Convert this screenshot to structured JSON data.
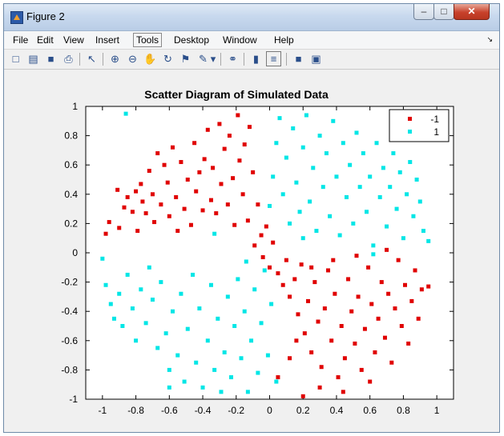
{
  "window": {
    "title": "Figure 2",
    "minimize_glyph": "–",
    "maximize_glyph": "□",
    "close_glyph": "✕"
  },
  "menubar": {
    "items": [
      "File",
      "Edit",
      "View",
      "Insert",
      "Tools",
      "Desktop",
      "Window",
      "Help"
    ],
    "active": "Tools",
    "overflow_glyph": "↘"
  },
  "toolbar": {
    "buttons": [
      {
        "name": "new-figure-icon",
        "glyph": "□"
      },
      {
        "name": "open-file-icon",
        "glyph": "▤"
      },
      {
        "name": "save-icon",
        "glyph": "■"
      },
      {
        "name": "print-icon",
        "glyph": "⎙"
      },
      {
        "name": "edit-plot-arrow-icon",
        "glyph": "↖"
      },
      {
        "name": "zoom-in-icon",
        "glyph": "⊕"
      },
      {
        "name": "zoom-out-icon",
        "glyph": "⊖"
      },
      {
        "name": "pan-hand-icon",
        "glyph": "✋"
      },
      {
        "name": "rotate-3d-icon",
        "glyph": "↻"
      },
      {
        "name": "data-cursor-icon",
        "glyph": "⚑"
      },
      {
        "name": "brush-icon",
        "glyph": "✎"
      },
      {
        "name": "brush-dropdown-icon",
        "glyph": "▾"
      },
      {
        "name": "link-plot-icon",
        "glyph": "⚭"
      },
      {
        "name": "insert-colorbar-icon",
        "glyph": "▮"
      },
      {
        "name": "insert-legend-icon",
        "glyph": "≡"
      },
      {
        "name": "hide-plot-tools-icon",
        "glyph": "■"
      },
      {
        "name": "show-plot-tools-icon",
        "glyph": "▣"
      }
    ]
  },
  "colors": {
    "class_neg": "#e00000",
    "class_pos": "#00e6e6",
    "axes_bg": "#ffffff",
    "figure_bg": "#f0f0f0"
  },
  "chart_data": {
    "type": "scatter",
    "title": "Scatter Diagram of Simulated Data",
    "xlabel": "",
    "ylabel": "",
    "xlim": [
      -1.1,
      1.1
    ],
    "ylim": [
      -1,
      1
    ],
    "xticks": [
      -1,
      -0.8,
      -0.6,
      -0.4,
      -0.2,
      0,
      0.2,
      0.4,
      0.6,
      0.8,
      1
    ],
    "yticks": [
      -1,
      -0.8,
      -0.6,
      -0.4,
      -0.2,
      0,
      0.2,
      0.4,
      0.6,
      0.8,
      1
    ],
    "legend_position": "top-right",
    "series": [
      {
        "name": "-1",
        "color": "#e00000",
        "points": [
          [
            -0.98,
            0.13
          ],
          [
            -0.96,
            0.21
          ],
          [
            -0.91,
            0.43
          ],
          [
            -0.9,
            0.17
          ],
          [
            -0.87,
            0.31
          ],
          [
            -0.85,
            0.38
          ],
          [
            -0.82,
            0.28
          ],
          [
            -0.8,
            0.42
          ],
          [
            -0.79,
            0.15
          ],
          [
            -0.77,
            0.47
          ],
          [
            -0.76,
            0.35
          ],
          [
            -0.74,
            0.27
          ],
          [
            -0.72,
            0.56
          ],
          [
            -0.7,
            0.4
          ],
          [
            -0.69,
            0.21
          ],
          [
            -0.67,
            0.68
          ],
          [
            -0.65,
            0.33
          ],
          [
            -0.63,
            0.6
          ],
          [
            -0.61,
            0.48
          ],
          [
            -0.6,
            0.25
          ],
          [
            -0.58,
            0.72
          ],
          [
            -0.56,
            0.38
          ],
          [
            -0.55,
            0.15
          ],
          [
            -0.53,
            0.62
          ],
          [
            -0.51,
            0.3
          ],
          [
            -0.49,
            0.5
          ],
          [
            -0.47,
            0.19
          ],
          [
            -0.45,
            0.75
          ],
          [
            -0.44,
            0.42
          ],
          [
            -0.42,
            0.55
          ],
          [
            -0.4,
            0.29
          ],
          [
            -0.39,
            0.64
          ],
          [
            -0.37,
            0.84
          ],
          [
            -0.35,
            0.36
          ],
          [
            -0.34,
            0.58
          ],
          [
            -0.32,
            0.27
          ],
          [
            -0.3,
            0.88
          ],
          [
            -0.29,
            0.47
          ],
          [
            -0.27,
            0.71
          ],
          [
            -0.25,
            0.33
          ],
          [
            -0.24,
            0.8
          ],
          [
            -0.22,
            0.51
          ],
          [
            -0.21,
            0.19
          ],
          [
            -0.19,
            0.94
          ],
          [
            -0.18,
            0.63
          ],
          [
            -0.16,
            0.4
          ],
          [
            -0.15,
            0.74
          ],
          [
            -0.13,
            0.22
          ],
          [
            -0.12,
            0.86
          ],
          [
            -0.1,
            0.55
          ],
          [
            -0.09,
            0.05
          ],
          [
            -0.07,
            0.33
          ],
          [
            -0.05,
            0.12
          ],
          [
            -0.04,
            -0.03
          ],
          [
            -0.02,
            0.18
          ],
          [
            0.0,
            -0.1
          ],
          [
            0.02,
            0.07
          ],
          [
            0.05,
            -0.14
          ],
          [
            0.08,
            -0.22
          ],
          [
            0.1,
            -0.05
          ],
          [
            0.12,
            -0.3
          ],
          [
            0.15,
            -0.18
          ],
          [
            0.17,
            -0.42
          ],
          [
            0.19,
            -0.08
          ],
          [
            0.21,
            -0.55
          ],
          [
            0.23,
            -0.33
          ],
          [
            0.25,
            -0.68
          ],
          [
            0.27,
            -0.2
          ],
          [
            0.29,
            -0.47
          ],
          [
            0.31,
            -0.78
          ],
          [
            0.33,
            -0.38
          ],
          [
            0.35,
            -0.12
          ],
          [
            0.37,
            -0.6
          ],
          [
            0.39,
            -0.28
          ],
          [
            0.41,
            -0.85
          ],
          [
            0.43,
            -0.5
          ],
          [
            0.45,
            -0.72
          ],
          [
            0.47,
            -0.18
          ],
          [
            0.49,
            -0.4
          ],
          [
            0.51,
            -0.62
          ],
          [
            0.53,
            -0.3
          ],
          [
            0.55,
            -0.8
          ],
          [
            0.57,
            -0.52
          ],
          [
            0.59,
            -0.1
          ],
          [
            0.61,
            -0.35
          ],
          [
            0.63,
            -0.68
          ],
          [
            0.65,
            -0.45
          ],
          [
            0.67,
            -0.2
          ],
          [
            0.69,
            -0.58
          ],
          [
            0.71,
            -0.28
          ],
          [
            0.73,
            -0.75
          ],
          [
            0.75,
            -0.38
          ],
          [
            0.77,
            -0.05
          ],
          [
            0.79,
            -0.5
          ],
          [
            0.81,
            -0.22
          ],
          [
            0.83,
            -0.62
          ],
          [
            0.85,
            -0.33
          ],
          [
            0.87,
            -0.12
          ],
          [
            0.89,
            -0.45
          ],
          [
            0.91,
            -0.25
          ],
          [
            0.95,
            -0.23
          ],
          [
            0.2,
            -0.98
          ],
          [
            0.05,
            -0.85
          ],
          [
            0.12,
            -0.72
          ],
          [
            0.3,
            -0.92
          ],
          [
            0.44,
            -0.95
          ],
          [
            0.6,
            -0.88
          ],
          [
            0.38,
            -0.05
          ],
          [
            0.52,
            -0.02
          ],
          [
            0.7,
            0.02
          ],
          [
            0.25,
            -0.1
          ],
          [
            0.16,
            -0.6
          ]
        ]
      },
      {
        "name": "1",
        "color": "#00e6e6",
        "points": [
          [
            -1.0,
            -0.04
          ],
          [
            -0.98,
            -0.22
          ],
          [
            -0.95,
            -0.35
          ],
          [
            -0.93,
            -0.45
          ],
          [
            -0.9,
            -0.28
          ],
          [
            -0.88,
            -0.5
          ],
          [
            -0.85,
            -0.15
          ],
          [
            -0.82,
            -0.38
          ],
          [
            -0.8,
            -0.6
          ],
          [
            -0.77,
            -0.25
          ],
          [
            -0.74,
            -0.48
          ],
          [
            -0.72,
            -0.1
          ],
          [
            -0.7,
            -0.32
          ],
          [
            -0.67,
            -0.65
          ],
          [
            -0.65,
            -0.2
          ],
          [
            -0.62,
            -0.55
          ],
          [
            -0.6,
            -0.8
          ],
          [
            -0.58,
            -0.4
          ],
          [
            -0.55,
            -0.7
          ],
          [
            -0.53,
            -0.28
          ],
          [
            -0.51,
            -0.88
          ],
          [
            -0.49,
            -0.52
          ],
          [
            -0.46,
            -0.15
          ],
          [
            -0.44,
            -0.75
          ],
          [
            -0.42,
            -0.38
          ],
          [
            -0.4,
            -0.92
          ],
          [
            -0.37,
            -0.6
          ],
          [
            -0.35,
            -0.22
          ],
          [
            -0.33,
            -0.8
          ],
          [
            -0.31,
            -0.45
          ],
          [
            -0.29,
            -0.95
          ],
          [
            -0.27,
            -0.68
          ],
          [
            -0.25,
            -0.3
          ],
          [
            -0.23,
            -0.85
          ],
          [
            -0.21,
            -0.5
          ],
          [
            -0.19,
            -0.18
          ],
          [
            -0.17,
            -0.72
          ],
          [
            -0.15,
            -0.4
          ],
          [
            -0.13,
            -0.95
          ],
          [
            -0.11,
            -0.6
          ],
          [
            -0.09,
            -0.25
          ],
          [
            -0.07,
            -0.82
          ],
          [
            -0.05,
            -0.48
          ],
          [
            -0.03,
            -0.12
          ],
          [
            -0.01,
            -0.7
          ],
          [
            0.01,
            -0.35
          ],
          [
            0.04,
            -0.88
          ],
          [
            0.0,
            0.32
          ],
          [
            0.02,
            0.52
          ],
          [
            0.04,
            0.75
          ],
          [
            0.06,
            0.92
          ],
          [
            0.08,
            0.4
          ],
          [
            0.1,
            0.65
          ],
          [
            0.12,
            0.2
          ],
          [
            0.14,
            0.85
          ],
          [
            0.16,
            0.48
          ],
          [
            0.18,
            0.28
          ],
          [
            0.2,
            0.72
          ],
          [
            0.22,
            0.94
          ],
          [
            0.24,
            0.35
          ],
          [
            0.26,
            0.58
          ],
          [
            0.28,
            0.15
          ],
          [
            0.3,
            0.8
          ],
          [
            0.32,
            0.45
          ],
          [
            0.34,
            0.68
          ],
          [
            0.36,
            0.25
          ],
          [
            0.38,
            0.9
          ],
          [
            0.4,
            0.52
          ],
          [
            0.42,
            0.12
          ],
          [
            0.44,
            0.75
          ],
          [
            0.46,
            0.38
          ],
          [
            0.48,
            0.6
          ],
          [
            0.5,
            0.2
          ],
          [
            0.52,
            0.82
          ],
          [
            0.54,
            0.45
          ],
          [
            0.56,
            0.68
          ],
          [
            0.58,
            0.28
          ],
          [
            0.6,
            0.52
          ],
          [
            0.62,
            0.05
          ],
          [
            0.64,
            0.75
          ],
          [
            0.66,
            0.38
          ],
          [
            0.68,
            0.58
          ],
          [
            0.7,
            0.18
          ],
          [
            0.72,
            0.45
          ],
          [
            0.74,
            0.68
          ],
          [
            0.76,
            0.3
          ],
          [
            0.78,
            0.55
          ],
          [
            0.8,
            0.1
          ],
          [
            0.82,
            0.4
          ],
          [
            0.84,
            0.62
          ],
          [
            0.86,
            0.25
          ],
          [
            0.88,
            0.5
          ],
          [
            0.9,
            0.35
          ],
          [
            0.92,
            0.15
          ],
          [
            0.95,
            0.08
          ],
          [
            -0.86,
            0.95
          ],
          [
            -0.6,
            -0.92
          ],
          [
            -0.33,
            0.13
          ],
          [
            -0.14,
            -0.06
          ],
          [
            0.2,
            0.1
          ],
          [
            0.62,
            -0.01
          ]
        ]
      }
    ]
  }
}
